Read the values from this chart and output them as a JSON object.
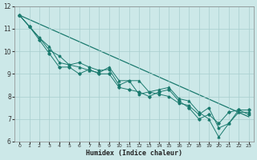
{
  "title": "",
  "xlabel": "Humidex (Indice chaleur)",
  "ylabel": "",
  "bg_color": "#cce8e8",
  "line_color": "#1a7a6e",
  "xlim": [
    -0.5,
    23.5
  ],
  "ylim": [
    6,
    12
  ],
  "xticks": [
    0,
    1,
    2,
    3,
    4,
    5,
    6,
    7,
    8,
    9,
    10,
    11,
    12,
    13,
    14,
    15,
    16,
    17,
    18,
    19,
    20,
    21,
    22,
    23
  ],
  "yticks": [
    6,
    7,
    8,
    9,
    10,
    11,
    12
  ],
  "line1": [
    11.6,
    11.1,
    10.6,
    10.2,
    9.5,
    9.4,
    9.3,
    9.15,
    9.05,
    9.3,
    8.7,
    8.7,
    8.7,
    8.2,
    8.3,
    8.4,
    7.9,
    7.8,
    7.3,
    7.0,
    6.2,
    6.8,
    7.3,
    7.3
  ],
  "line2": [
    11.6,
    11.1,
    10.6,
    10.05,
    9.8,
    9.4,
    9.5,
    9.3,
    9.15,
    9.2,
    8.5,
    8.7,
    8.1,
    8.2,
    8.1,
    8.0,
    7.7,
    7.6,
    7.2,
    7.5,
    6.6,
    6.8,
    7.4,
    7.2
  ],
  "line3": [
    11.6,
    11.1,
    10.5,
    9.9,
    9.3,
    9.3,
    9.0,
    9.2,
    9.0,
    9.0,
    8.4,
    8.3,
    8.2,
    8.0,
    8.2,
    8.3,
    7.8,
    7.5,
    7.0,
    7.2,
    6.8,
    7.3,
    7.4,
    7.4
  ],
  "line4_x": [
    0,
    23
  ],
  "line4_y": [
    11.6,
    7.1
  ]
}
